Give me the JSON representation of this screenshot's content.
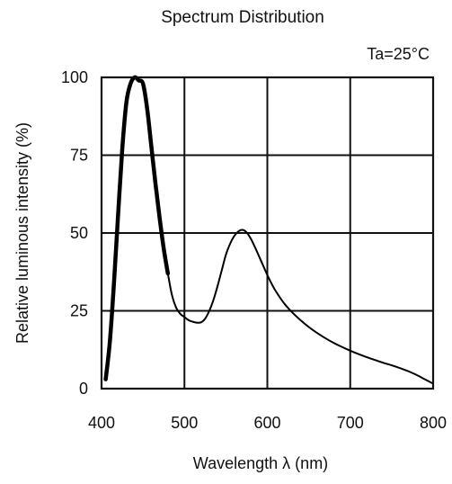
{
  "chart_data": {
    "type": "line",
    "title": "Spectrum Distribution",
    "condition": "Ta=25°C",
    "xlabel": "Wavelength λ (nm)",
    "ylabel": "Relative luminous intensity (%)",
    "xlim": [
      400,
      800
    ],
    "ylim": [
      0,
      100
    ],
    "x_ticks": [
      400,
      500,
      600,
      700,
      800
    ],
    "y_ticks": [
      0,
      25,
      50,
      75,
      100
    ],
    "x_tick_labels": [
      "400",
      "500",
      "600",
      "700",
      "800"
    ],
    "y_tick_labels": [
      "0",
      "25",
      "50",
      "75",
      "100"
    ],
    "grid": true,
    "series": [
      {
        "x": [
          405,
          410,
          415,
          420,
          425,
          430,
          435,
          440,
          445,
          450,
          455,
          460,
          465,
          470,
          475,
          480,
          485,
          490,
          495,
          500,
          505,
          510,
          515,
          520,
          525,
          530,
          535,
          540,
          545,
          550,
          555,
          560,
          565,
          570,
          575,
          580,
          585,
          590,
          595,
          600,
          605,
          610,
          620,
          630,
          640,
          650,
          660,
          670,
          680,
          690,
          700,
          710,
          720,
          730,
          740,
          750,
          760,
          770,
          780,
          790,
          800
        ],
        "y": [
          3,
          15,
          34,
          56,
          77,
          92,
          98,
          100,
          99,
          98,
          90,
          78,
          66,
          55,
          45,
          37,
          30,
          26,
          24,
          23,
          22,
          21.5,
          21.2,
          21.3,
          22.5,
          25,
          28.5,
          33,
          38,
          43,
          46.5,
          49,
          50.5,
          51,
          50.2,
          48.2,
          45.5,
          42.5,
          39.5,
          36.5,
          33.8,
          31.4,
          27.5,
          24.5,
          22,
          19.8,
          17.9,
          16.2,
          14.7,
          13.4,
          12.2,
          11.1,
          10.1,
          9.2,
          8.3,
          7.5,
          6.6,
          5.6,
          4.4,
          3,
          1.6
        ]
      }
    ]
  }
}
